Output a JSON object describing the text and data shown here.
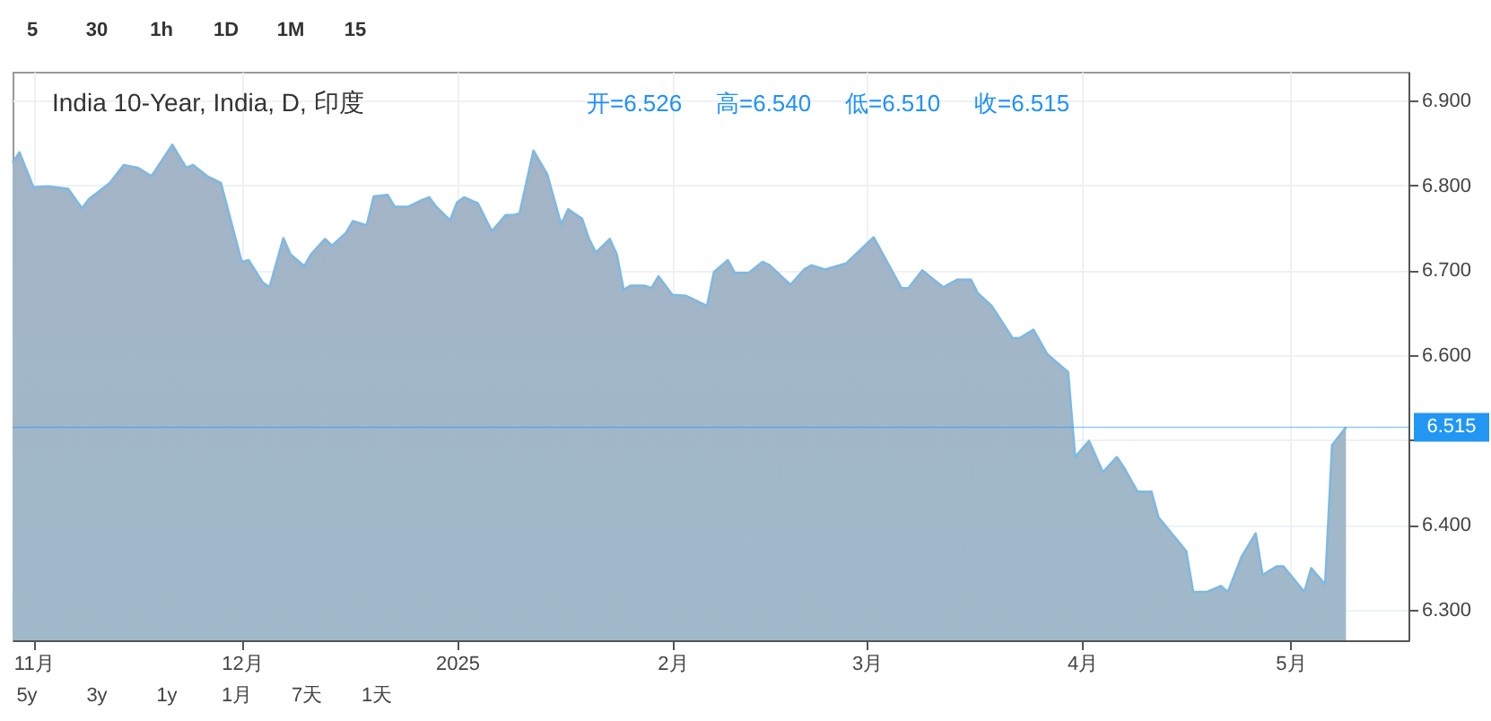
{
  "chart_data": {
    "type": "area",
    "title": "India 10-Year, India, D, 印度",
    "annotations": [
      "开=6.526",
      "高=6.540",
      "低=6.510",
      "收=6.515",
      "5",
      "30",
      "1h",
      "1D",
      "1M",
      "15",
      "5y",
      "3y",
      "1y",
      "1月",
      "7天",
      "1天"
    ],
    "x": [
      "2024-10-29",
      "2024-10-30",
      "2024-11-01",
      "2024-11-03",
      "2024-11-06",
      "2024-11-08",
      "2024-11-09",
      "2024-11-12",
      "2024-11-14",
      "2024-11-16",
      "2024-11-18",
      "2024-11-21",
      "2024-11-23",
      "2024-11-24",
      "2024-11-26",
      "2024-11-28",
      "2024-12-01",
      "2024-12-02",
      "2024-12-04",
      "2024-12-05",
      "2024-12-07",
      "2024-12-08",
      "2024-12-10",
      "2024-12-11",
      "2024-12-13",
      "2024-12-14",
      "2024-12-16",
      "2024-12-17",
      "2024-12-19",
      "2024-12-20",
      "2024-12-22",
      "2024-12-23",
      "2024-12-25",
      "2024-12-27",
      "2024-12-28",
      "2024-12-29",
      "2024-12-31",
      "2025-01-01",
      "2025-01-02",
      "2025-01-04",
      "2025-01-06",
      "2025-01-08",
      "2025-01-09",
      "2025-01-10",
      "2025-01-12",
      "2025-01-14",
      "2025-01-16",
      "2025-01-17",
      "2025-01-19",
      "2025-01-20",
      "2025-01-21",
      "2025-01-23",
      "2025-01-24",
      "2025-01-25",
      "2025-01-26",
      "2025-01-28",
      "2025-01-29",
      "2025-01-30",
      "2025-02-01",
      "2025-02-03",
      "2025-02-06",
      "2025-02-07",
      "2025-02-09",
      "2025-02-10",
      "2025-02-12",
      "2025-02-14",
      "2025-02-15",
      "2025-02-18",
      "2025-02-20",
      "2025-02-21",
      "2025-02-23",
      "2025-02-26",
      "2025-03-02",
      "2025-03-06",
      "2025-03-07",
      "2025-03-09",
      "2025-03-12",
      "2025-03-14",
      "2025-03-16",
      "2025-03-17",
      "2025-03-19",
      "2025-03-22",
      "2025-03-23",
      "2025-03-25",
      "2025-03-27",
      "2025-03-30",
      "2025-03-31",
      "2025-04-02",
      "2025-04-04",
      "2025-04-06",
      "2025-04-07",
      "2025-04-09",
      "2025-04-11",
      "2025-04-12",
      "2025-04-16",
      "2025-04-17",
      "2025-04-19",
      "2025-04-21",
      "2025-04-22",
      "2025-04-24",
      "2025-04-26",
      "2025-04-27",
      "2025-04-29",
      "2025-04-30",
      "2025-05-03",
      "2025-05-04",
      "2025-05-06",
      "2025-05-07",
      "2025-05-09"
    ],
    "series": [
      {
        "color": "#7fb8e0",
        "values": [
          6.827,
          6.839,
          6.798,
          6.799,
          6.796,
          6.773,
          6.784,
          6.803,
          6.824,
          6.821,
          6.811,
          6.848,
          6.821,
          6.824,
          6.811,
          6.803,
          6.71,
          6.712,
          6.686,
          6.68,
          6.738,
          6.719,
          6.705,
          6.719,
          6.737,
          6.729,
          6.744,
          6.758,
          6.753,
          6.787,
          6.789,
          6.775,
          6.775,
          6.783,
          6.786,
          6.775,
          6.759,
          6.78,
          6.786,
          6.779,
          6.746,
          6.765,
          6.765,
          6.767,
          6.841,
          6.813,
          6.754,
          6.772,
          6.761,
          6.737,
          6.721,
          6.737,
          6.719,
          6.677,
          6.682,
          6.682,
          6.679,
          6.693,
          6.671,
          6.67,
          6.658,
          6.698,
          6.712,
          6.697,
          6.697,
          6.71,
          6.706,
          6.683,
          6.701,
          6.706,
          6.701,
          6.708,
          6.739,
          6.679,
          6.679,
          6.7,
          6.68,
          6.689,
          6.689,
          6.673,
          6.658,
          6.62,
          6.62,
          6.63,
          6.601,
          6.58,
          6.48,
          6.499,
          6.462,
          6.48,
          6.468,
          6.439,
          6.439,
          6.409,
          6.369,
          6.321,
          6.321,
          6.328,
          6.321,
          6.363,
          6.39,
          6.341,
          6.351,
          6.351,
          6.321,
          6.349,
          6.33,
          6.494,
          6.515
        ]
      }
    ],
    "xlim": [
      "2024-10-29",
      "2025-05-18"
    ],
    "xticks": [
      {
        "value": "2024-11-01",
        "label": "11月"
      },
      {
        "value": "2024-12-01",
        "label": "12月"
      },
      {
        "value": "2025-01-01",
        "label": "2025"
      },
      {
        "value": "2025-02-01",
        "label": "2月"
      },
      {
        "value": "2025-03-01",
        "label": "3月"
      },
      {
        "value": "2025-04-01",
        "label": "4月"
      },
      {
        "value": "2025-05-01",
        "label": "5月"
      }
    ],
    "ylim": [
      6.264,
      6.934
    ],
    "yticks": [
      {
        "value": 6.3,
        "label": "6.300"
      },
      {
        "value": 6.4,
        "label": "6.400"
      },
      {
        "value": 6.5,
        "label": null
      },
      {
        "value": 6.6,
        "label": "6.600"
      },
      {
        "value": 6.7,
        "label": "6.700"
      },
      {
        "value": 6.8,
        "label": "6.800"
      },
      {
        "value": 6.9,
        "label": "6.900"
      }
    ],
    "ref_lines": [
      {
        "axis": "y",
        "value": 6.515,
        "label": "6.515",
        "color": "#2196f3"
      }
    ],
    "grid": true,
    "marker": "none",
    "line_style": "solid"
  }
}
